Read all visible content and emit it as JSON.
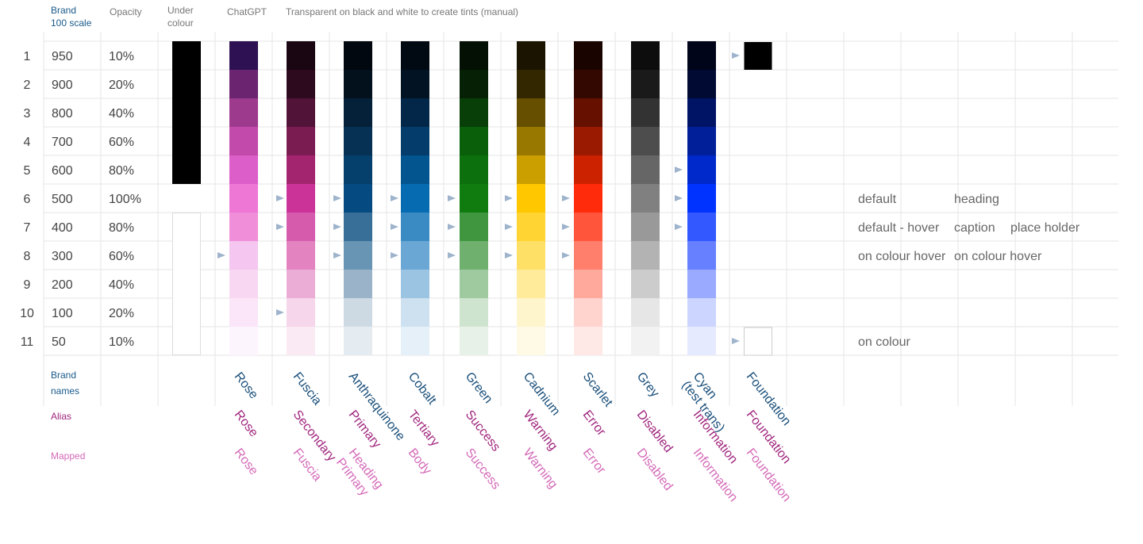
{
  "header": {
    "scale": [
      "Brand",
      "100 scale"
    ],
    "opacity": "Opacity",
    "under": [
      "Under",
      "colour"
    ],
    "chatgpt": "ChatGPT",
    "transparent": "Transparent on black and white to create tints (manual)"
  },
  "rows": [
    {
      "number": "1",
      "scale": "950",
      "opacity": "10%",
      "notes": []
    },
    {
      "number": "2",
      "scale": "900",
      "opacity": "20%",
      "notes": []
    },
    {
      "number": "3",
      "scale": "800",
      "opacity": "40%",
      "notes": []
    },
    {
      "number": "4",
      "scale": "700",
      "opacity": "60%",
      "notes": []
    },
    {
      "number": "5",
      "scale": "600",
      "opacity": "80%",
      "notes": []
    },
    {
      "number": "6",
      "scale": "500",
      "opacity": "100%",
      "notes": [
        "default",
        "heading"
      ]
    },
    {
      "number": "7",
      "scale": "400",
      "opacity": "80%",
      "notes": [
        "default - hover",
        "caption",
        "place holder"
      ]
    },
    {
      "number": "8",
      "scale": "300",
      "opacity": "60%",
      "notes": [
        "on colour hover",
        "on colour hover"
      ]
    },
    {
      "number": "9",
      "scale": "200",
      "opacity": "40%",
      "notes": []
    },
    {
      "number": "10",
      "scale": "100",
      "opacity": "20%",
      "notes": []
    },
    {
      "number": "11",
      "scale": "50",
      "opacity": "10%",
      "notes": [
        "on colour"
      ]
    }
  ],
  "legend": {
    "names": [
      "Brand",
      "names"
    ],
    "alias": "Alias",
    "mapped": "Mapped"
  },
  "brands": [
    {
      "name": [
        "Rose"
      ],
      "alias": [
        "Rose"
      ],
      "mapped": [
        "Rose"
      ],
      "colors": [
        "#2d1152",
        "#6b2470",
        "#9e3a8e",
        "#c24aab",
        "#dc5ec8",
        "#ee77d6",
        "#f08ed9",
        "#f5c6ef",
        "#f8d7f3",
        "#fae6f8",
        "#fdf5fd"
      ]
    },
    {
      "name": [
        "Fuscia"
      ],
      "alias": [
        "Secondary"
      ],
      "mapped": [
        "Fuscia"
      ],
      "colors": [
        "#1a0512",
        "#2e0a1f",
        "#521338",
        "#7a1c52",
        "#a32570",
        "#cc3399",
        "#d65bac",
        "#e384c1",
        "#ebadd6",
        "#f5d6ea",
        "#faeaf4"
      ]
    },
    {
      "name": [
        "Anthraquinone"
      ],
      "alias": [
        "Primary"
      ],
      "mapped": [
        "Heading",
        "Primary"
      ],
      "colors": [
        "#01080f",
        "#03111d",
        "#05213a",
        "#063154",
        "#053f6b",
        "#054a80",
        "#376f99",
        "#6795b3",
        "#9bb3c9",
        "#cddae4",
        "#e5ecf1"
      ]
    },
    {
      "name": [
        "Cobalt"
      ],
      "alias": [
        "Tertiary"
      ],
      "mapped": [
        "Body"
      ],
      "colors": [
        "#010a12",
        "#021424",
        "#032748",
        "#043d6c",
        "#03558f",
        "#066bb0",
        "#3a8bc3",
        "#6aa7d4",
        "#9bc4e2",
        "#cde1f0",
        "#e6f0f8"
      ]
    },
    {
      "name": [
        "Green"
      ],
      "alias": [
        "Success"
      ],
      "mapped": [
        "Success"
      ],
      "colors": [
        "#031003",
        "#062006",
        "#083f08",
        "#0a5f0a",
        "#0c700c",
        "#107c10",
        "#3f963f",
        "#6fb06f",
        "#9fca9f",
        "#cfe4cf",
        "#e7f1e7"
      ]
    },
    {
      "name": [
        "Cadnium"
      ],
      "alias": [
        "Warning"
      ],
      "mapped": [
        "Warning"
      ],
      "colors": [
        "#1a1400",
        "#332700",
        "#665000",
        "#997800",
        "#cc9f00",
        "#ffc700",
        "#ffd433",
        "#ffe066",
        "#ffeb99",
        "#fff5cc",
        "#fffae6"
      ]
    },
    {
      "name": [
        "Scarlet"
      ],
      "alias": [
        "Error"
      ],
      "mapped": [
        "Error"
      ],
      "colors": [
        "#1a0400",
        "#330800",
        "#661100",
        "#991a00",
        "#cc2200",
        "#ff2b0a",
        "#ff553b",
        "#ff7f6c",
        "#ffa99d",
        "#ffd4ce",
        "#ffe9e6"
      ]
    },
    {
      "name": [
        "Grey"
      ],
      "alias": [
        "Disabled"
      ],
      "mapped": [
        "Disabled"
      ],
      "colors": [
        "#0d0d0d",
        "#1a1a1a",
        "#333333",
        "#4d4d4d",
        "#666666",
        "#808080",
        "#999999",
        "#b3b3b3",
        "#cccccc",
        "#e6e6e6",
        "#f2f2f2"
      ]
    },
    {
      "name": [
        "Cyan",
        "(test trans)"
      ],
      "alias": [
        "Information"
      ],
      "mapped": [
        "Information"
      ],
      "colors": [
        "#000519",
        "#000a33",
        "#001466",
        "#001f99",
        "#0029cc",
        "#0033ff",
        "#3358ff",
        "#6680ff",
        "#99aaff",
        "#ccd5ff",
        "#e6eaff"
      ]
    },
    {
      "name": [
        "Foundation"
      ],
      "alias": [
        "Foundation"
      ],
      "mapped": [
        "Foundation"
      ],
      "colors": [
        "#000000",
        null,
        null,
        null,
        null,
        null,
        null,
        null,
        null,
        null,
        "#ffffff"
      ]
    }
  ]
}
